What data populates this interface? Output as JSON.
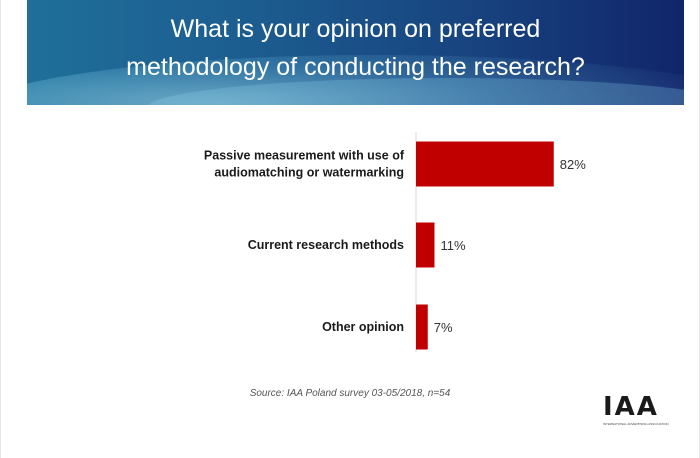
{
  "title_line1": "What is your opinion on preferred",
  "title_line2": "methodology of conducting the research?",
  "chart_data": {
    "type": "bar",
    "orientation": "horizontal",
    "categories": [
      [
        "Passive measurement with use of",
        "audiomatching or watermarking"
      ],
      [
        "Current research methods"
      ],
      [
        "Other opinion"
      ]
    ],
    "values": [
      82,
      11,
      7
    ],
    "value_labels": [
      "82%",
      "11%",
      "7%"
    ],
    "bar_color": "#c00000",
    "xlim": [
      0,
      100
    ],
    "grid": false,
    "legend": "none"
  },
  "source": "Source: IAA Poland survey 03-05/2018, n=54",
  "logo": {
    "text": "IAA",
    "subtext": "INTERNATIONAL ADVERTISING ASSOCIATION"
  },
  "colors": {
    "banner_start": "#1f6f9a",
    "banner_end": "#11256a",
    "bar": "#c00000"
  }
}
